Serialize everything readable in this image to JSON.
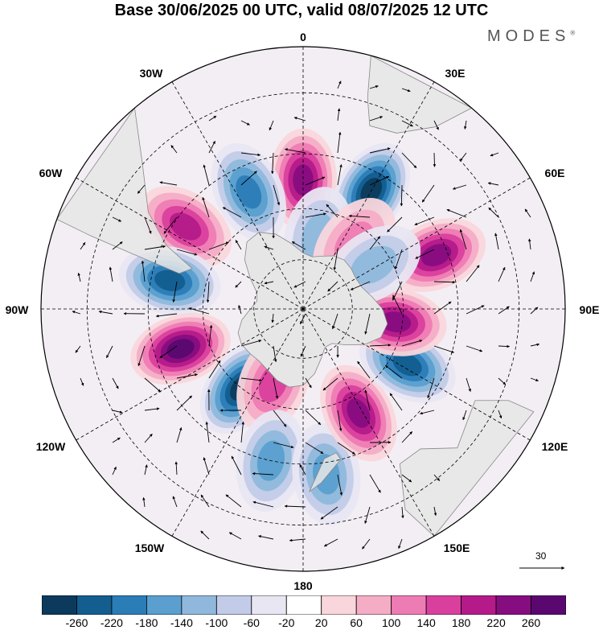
{
  "header": {
    "title": "Base 30/06/2025 00 UTC, valid 08/07/2025 12 UTC",
    "brand": "MODES"
  },
  "map": {
    "projection": "south-polar-stereographic",
    "longitude_labels": {
      "top": "0",
      "bottom": "180",
      "left": "90W",
      "right": "90E",
      "nw1": "30W",
      "nw2": "60W",
      "sw1": "120W",
      "sw2": "150W",
      "ne1": "30E",
      "ne2": "60E",
      "se1": "120E",
      "se2": "150E"
    },
    "colors": {
      "land": "#e6e6e6",
      "coast": "#888888",
      "grid": "#000000"
    },
    "anomalies": [
      {
        "lon": 0,
        "lat": -52,
        "value": 200
      },
      {
        "lon": 30,
        "lat": -50,
        "value": -240
      },
      {
        "lon": -25,
        "lat": -52,
        "value": -160
      },
      {
        "lon": -55,
        "lat": -48,
        "value": 160
      },
      {
        "lon": -78,
        "lat": -50,
        "value": -220
      },
      {
        "lon": -108,
        "lat": -52,
        "value": 260
      },
      {
        "lon": -142,
        "lat": -60,
        "value": -260
      },
      {
        "lon": -158,
        "lat": -66,
        "value": 120
      },
      {
        "lon": -168,
        "lat": -45,
        "value": -140
      },
      {
        "lon": 172,
        "lat": -42,
        "value": -140
      },
      {
        "lon": 152,
        "lat": -55,
        "value": 200
      },
      {
        "lon": 118,
        "lat": -55,
        "value": -230
      },
      {
        "lon": 98,
        "lat": -62,
        "value": 200
      },
      {
        "lon": 68,
        "lat": -48,
        "value": 200
      },
      {
        "lon": 12,
        "lat": -68,
        "value": -80
      },
      {
        "lon": 38,
        "lat": -65,
        "value": 110
      },
      {
        "lon": 58,
        "lat": -65,
        "value": -100
      }
    ]
  },
  "reference_vector": {
    "value": "30"
  },
  "colorbar": {
    "levels": [
      "-260",
      "-220",
      "-180",
      "-140",
      "-100",
      "-60",
      "-20",
      "20",
      "60",
      "100",
      "140",
      "180",
      "220",
      "260"
    ],
    "colors": [
      "#0c3a5c",
      "#135e8f",
      "#2b7db7",
      "#5a9fcf",
      "#8fb8dc",
      "#c2cce8",
      "#e8e6f2",
      "#ffffff",
      "#f9d6dc",
      "#f5adc6",
      "#ee7cb4",
      "#d9409e",
      "#b51a8a",
      "#860d7f",
      "#5a0870"
    ]
  }
}
